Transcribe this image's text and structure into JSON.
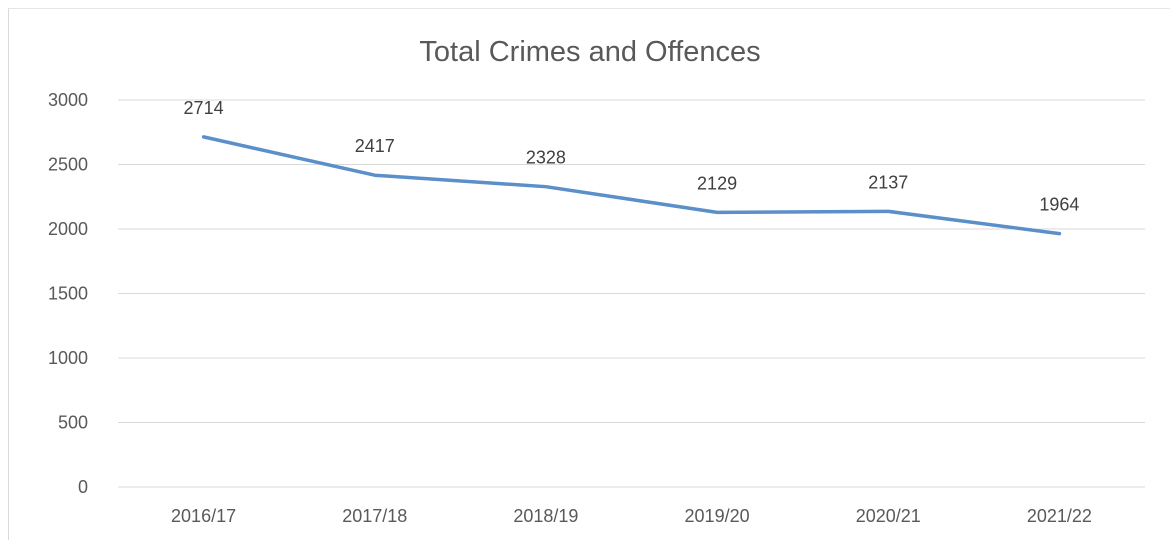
{
  "chart_data": {
    "type": "line",
    "title": "Total Crimes and Offences",
    "xlabel": "",
    "ylabel": "",
    "categories": [
      "2016/17",
      "2017/18",
      "2018/19",
      "2019/20",
      "2020/21",
      "2021/22"
    ],
    "series": [
      {
        "values": [
          2714,
          2417,
          2328,
          2129,
          2137,
          1964
        ],
        "color": "#5b8fc9"
      }
    ],
    "data_labels": [
      "2714",
      "2417",
      "2328",
      "2129",
      "2137",
      "1964"
    ],
    "ylim": [
      0,
      3000
    ],
    "yticks": [
      0,
      500,
      1000,
      1500,
      2000,
      2500,
      3000
    ],
    "ytick_labels": [
      "0",
      "500",
      "1000",
      "1500",
      "2000",
      "2500",
      "3000"
    ],
    "grid": true,
    "gridline_color": "#d9d9d9",
    "legend": "none"
  }
}
